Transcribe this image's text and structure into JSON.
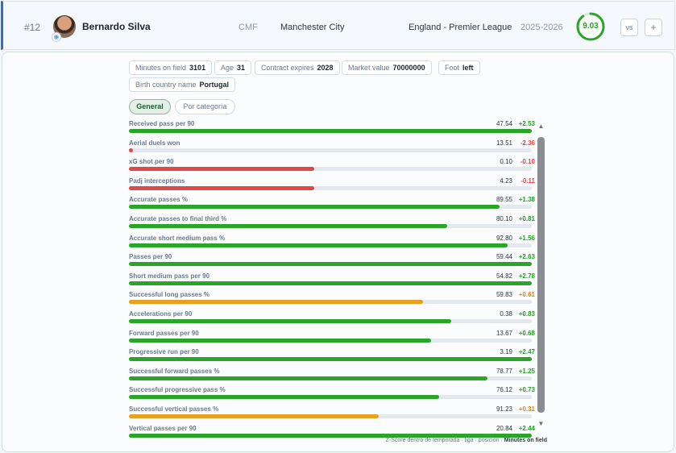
{
  "player": {
    "number": "#12",
    "name": "Bernardo Silva",
    "position": "CMF",
    "team": "Manchester City",
    "league": "England - Premier League",
    "season": "2025-2026",
    "rating": "9.03",
    "rating_fraction": 0.9
  },
  "buttons": {
    "vs": "vs",
    "add": "+"
  },
  "info_chips": [
    {
      "label": "Minutes on field",
      "value": "3101"
    },
    {
      "label": "Age",
      "value": "31"
    },
    {
      "label": "Contract expires",
      "value": "2028"
    },
    {
      "label": "Market value",
      "value": "70000000"
    },
    {
      "label": "Foot",
      "value": "left"
    },
    {
      "label": "Birth country name",
      "value": "Portugal"
    }
  ],
  "tabs": {
    "general": "General",
    "by_category": "Por categoría"
  },
  "colors": {
    "green": "#2aa52a",
    "red": "#e04848",
    "orange": "#e8a020",
    "accent": "#2b6cd6"
  },
  "metrics": [
    {
      "label": "Received pass per 90",
      "value": "47.54",
      "z": "+2.53",
      "fill": 1.0,
      "color": "green"
    },
    {
      "label": "Aerial duels won",
      "value": "13.51",
      "z": "-2.36",
      "fill": 0.01,
      "color": "red"
    },
    {
      "label": "xG shot per 90",
      "value": "0.10",
      "z": "-0.10",
      "fill": 0.46,
      "color": "red"
    },
    {
      "label": "Padj interceptions",
      "value": "4.23",
      "z": "-0.11",
      "fill": 0.46,
      "color": "red"
    },
    {
      "label": "Accurate passes %",
      "value": "89.55",
      "z": "+1.38",
      "fill": 0.92,
      "color": "green"
    },
    {
      "label": "Accurate passes to final third %",
      "value": "80.10",
      "z": "+0.81",
      "fill": 0.79,
      "color": "green"
    },
    {
      "label": "Accurate short medium pass %",
      "value": "92.80",
      "z": "+1.56",
      "fill": 0.94,
      "color": "green"
    },
    {
      "label": "Passes per 90",
      "value": "59.44",
      "z": "+2.63",
      "fill": 1.0,
      "color": "green"
    },
    {
      "label": "Short medium pass per 90",
      "value": "54.82",
      "z": "+2.78",
      "fill": 1.0,
      "color": "green"
    },
    {
      "label": "Successful long passes %",
      "value": "59.83",
      "z": "+0.61",
      "fill": 0.73,
      "color": "orange"
    },
    {
      "label": "Accelerations per 90",
      "value": "0.38",
      "z": "+0.83",
      "fill": 0.8,
      "color": "green"
    },
    {
      "label": "Forward passes per 90",
      "value": "13.67",
      "z": "+0.68",
      "fill": 0.75,
      "color": "green"
    },
    {
      "label": "Progressive run per 90",
      "value": "3.19",
      "z": "+2.47",
      "fill": 1.0,
      "color": "green"
    },
    {
      "label": "Successful forward passes %",
      "value": "78.77",
      "z": "+1.25",
      "fill": 0.89,
      "color": "green"
    },
    {
      "label": "Successful progressive pass %",
      "value": "76.12",
      "z": "+0.73",
      "fill": 0.77,
      "color": "green"
    },
    {
      "label": "Successful vertical passes %",
      "value": "91.23",
      "z": "+0.31",
      "fill": 0.62,
      "color": "orange"
    },
    {
      "label": "Vertical passes per 90",
      "value": "20.84",
      "z": "+2.44",
      "fill": 1.0,
      "color": "green"
    }
  ],
  "footnote": {
    "prefix": "Z-Score dentro de temporada · liga · posición · ",
    "highlight": "Minutes on field"
  }
}
